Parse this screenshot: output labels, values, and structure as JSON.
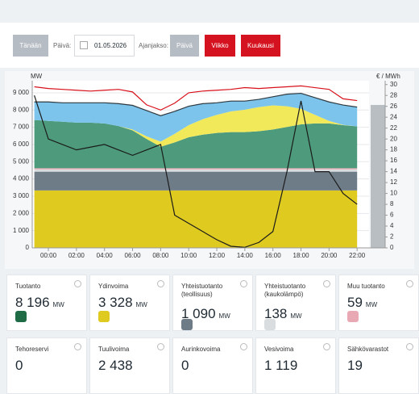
{
  "toolbar": {
    "today": "Tänään",
    "day_label": "Päivä:",
    "date": "01.05.2026",
    "period_label": "Ajanjakso:",
    "periods": [
      "Päivä",
      "Viikko",
      "Kuukausi"
    ]
  },
  "chart_data": {
    "type": "area",
    "y_label": "MW",
    "y2_label": "€ / MWh",
    "x": [
      -1,
      0,
      1,
      2,
      3,
      4,
      5,
      6,
      7,
      8,
      9,
      10,
      11,
      12,
      13,
      14,
      15,
      16,
      17,
      18,
      19,
      20,
      21,
      22
    ],
    "xlim": [
      -1.15,
      22.85
    ],
    "xticks": [
      {
        "value": 0,
        "label": "00:00"
      },
      {
        "value": 2,
        "label": "02:00"
      },
      {
        "value": 4,
        "label": "04:00"
      },
      {
        "value": 6,
        "label": "06:00"
      },
      {
        "value": 8,
        "label": "08:00"
      },
      {
        "value": 10,
        "label": "10:00"
      },
      {
        "value": 12,
        "label": "12:00"
      },
      {
        "value": 14,
        "label": "14:00"
      },
      {
        "value": 16,
        "label": "16:00"
      },
      {
        "value": 18,
        "label": "18:00"
      },
      {
        "value": 20,
        "label": "20:00"
      },
      {
        "value": 22,
        "label": "22:00"
      }
    ],
    "ylim": [
      0,
      9700
    ],
    "yticks": [
      0,
      {
        "value": 1000,
        "label": "1 000"
      },
      {
        "value": 2000,
        "label": "2 000"
      },
      {
        "value": 3000,
        "label": "3 000"
      },
      {
        "value": 4000,
        "label": "4 000"
      },
      {
        "value": 5000,
        "label": "5 000"
      },
      {
        "value": 6000,
        "label": "6 000"
      },
      {
        "value": 7000,
        "label": "7 000"
      },
      {
        "value": 8000,
        "label": "8 000"
      },
      {
        "value": 9000,
        "label": "9 000"
      }
    ],
    "y2lim": [
      0,
      30.7
    ],
    "y2ticks": [
      0,
      2,
      4,
      6,
      8,
      10,
      12,
      14,
      16,
      18,
      20,
      22,
      24,
      26,
      28,
      30
    ],
    "series": [
      {
        "style": "area",
        "color": "#dfca1f",
        "values": [
          3330,
          3330,
          3330,
          3330,
          3330,
          3330,
          3330,
          3330,
          3330,
          3330,
          3330,
          3330,
          3330,
          3330,
          3330,
          3330,
          3330,
          3330,
          3330,
          3330,
          3330,
          3330,
          3330,
          3330
        ]
      },
      {
        "style": "area",
        "color": "#6e7c88",
        "values": [
          1090,
          1090,
          1090,
          1090,
          1090,
          1090,
          1090,
          1090,
          1090,
          1090,
          1090,
          1090,
          1090,
          1090,
          1090,
          1090,
          1090,
          1090,
          1090,
          1090,
          1090,
          1090,
          1090,
          1090
        ]
      },
      {
        "style": "area",
        "color": "#d9dde0",
        "values": [
          140,
          140,
          140,
          140,
          140,
          140,
          140,
          140,
          140,
          140,
          140,
          140,
          140,
          140,
          140,
          140,
          140,
          140,
          140,
          140,
          140,
          140,
          140,
          140
        ]
      },
      {
        "style": "area",
        "color": "#e8a9b4",
        "values": [
          60,
          60,
          60,
          60,
          60,
          60,
          60,
          60,
          60,
          60,
          60,
          60,
          60,
          60,
          60,
          60,
          60,
          60,
          60,
          60,
          60,
          60,
          60,
          60
        ]
      },
      {
        "style": "area",
        "color": "#4d9b7c",
        "values": [
          2800,
          2750,
          2700,
          2650,
          2650,
          2600,
          2450,
          2200,
          1700,
          1250,
          1500,
          1800,
          1950,
          2050,
          2100,
          2100,
          2150,
          2250,
          2400,
          2550,
          2600,
          2600,
          2500,
          2430
        ]
      },
      {
        "style": "area",
        "color": "#f2e95a",
        "values": [
          0,
          0,
          0,
          0,
          0,
          0,
          0,
          50,
          150,
          300,
          500,
          700,
          900,
          1050,
          1200,
          1300,
          1400,
          1400,
          1200,
          900,
          500,
          150,
          20,
          0
        ]
      },
      {
        "style": "area",
        "color": "#7cc4ec",
        "values": [
          1050,
          1100,
          1100,
          1150,
          1150,
          1200,
          1300,
          1400,
          1500,
          1500,
          1300,
          1100,
          900,
          700,
          600,
          500,
          450,
          500,
          700,
          900,
          1000,
          1100,
          1150,
          1120
        ]
      },
      {
        "style": "line",
        "color": "#2f3a40",
        "values": [
          8470,
          8470,
          8420,
          8420,
          8420,
          8420,
          8370,
          8270,
          7970,
          7670,
          7920,
          8220,
          8370,
          8420,
          8520,
          8520,
          8620,
          8770,
          8920,
          8970,
          8720,
          8470,
          8290,
          8170
        ]
      },
      {
        "style": "line",
        "color": "#d8101a",
        "values": [
          9350,
          9250,
          9200,
          9150,
          9100,
          9150,
          9200,
          9050,
          8300,
          8000,
          8400,
          9000,
          9100,
          9150,
          9200,
          9300,
          9250,
          9300,
          9350,
          9400,
          9300,
          9200,
          8650,
          8550
        ]
      },
      {
        "style": "line",
        "axis": "y2",
        "color": "#1b1b1b",
        "values": [
          28,
          20,
          19,
          18,
          18.5,
          19,
          18,
          17,
          18,
          19,
          6,
          4.5,
          3,
          1.5,
          0.3,
          0.1,
          1,
          3,
          14,
          27,
          14,
          14,
          10,
          8
        ]
      }
    ]
  },
  "cards": [
    {
      "label": "Tuotanto",
      "value": "8 196",
      "unit": "MW",
      "color": "#1e6b45"
    },
    {
      "label": "Ydinvoima",
      "value": "3 328",
      "unit": "MW",
      "color": "#dfca1f"
    },
    {
      "label": "Yhteistuotanto (teollisuus)",
      "value": "1 090",
      "unit": "MW",
      "color": "#6e7c88"
    },
    {
      "label": "Yhteistuotanto (kaukolämpö)",
      "value": "138",
      "unit": "MW",
      "color": "#d9dde0"
    },
    {
      "label": "Muu tuotanto",
      "value": "59",
      "unit": "MW",
      "color": "#e8a9b4"
    },
    {
      "label": "Tehoreservi",
      "value": "0"
    },
    {
      "label": "Tuulivoima",
      "value": "2 438"
    },
    {
      "label": "Aurinkovoima",
      "value": "0"
    },
    {
      "label": "Vesivoima",
      "value": "1 119"
    },
    {
      "label": "Sähkövarastot",
      "value": "19"
    }
  ]
}
